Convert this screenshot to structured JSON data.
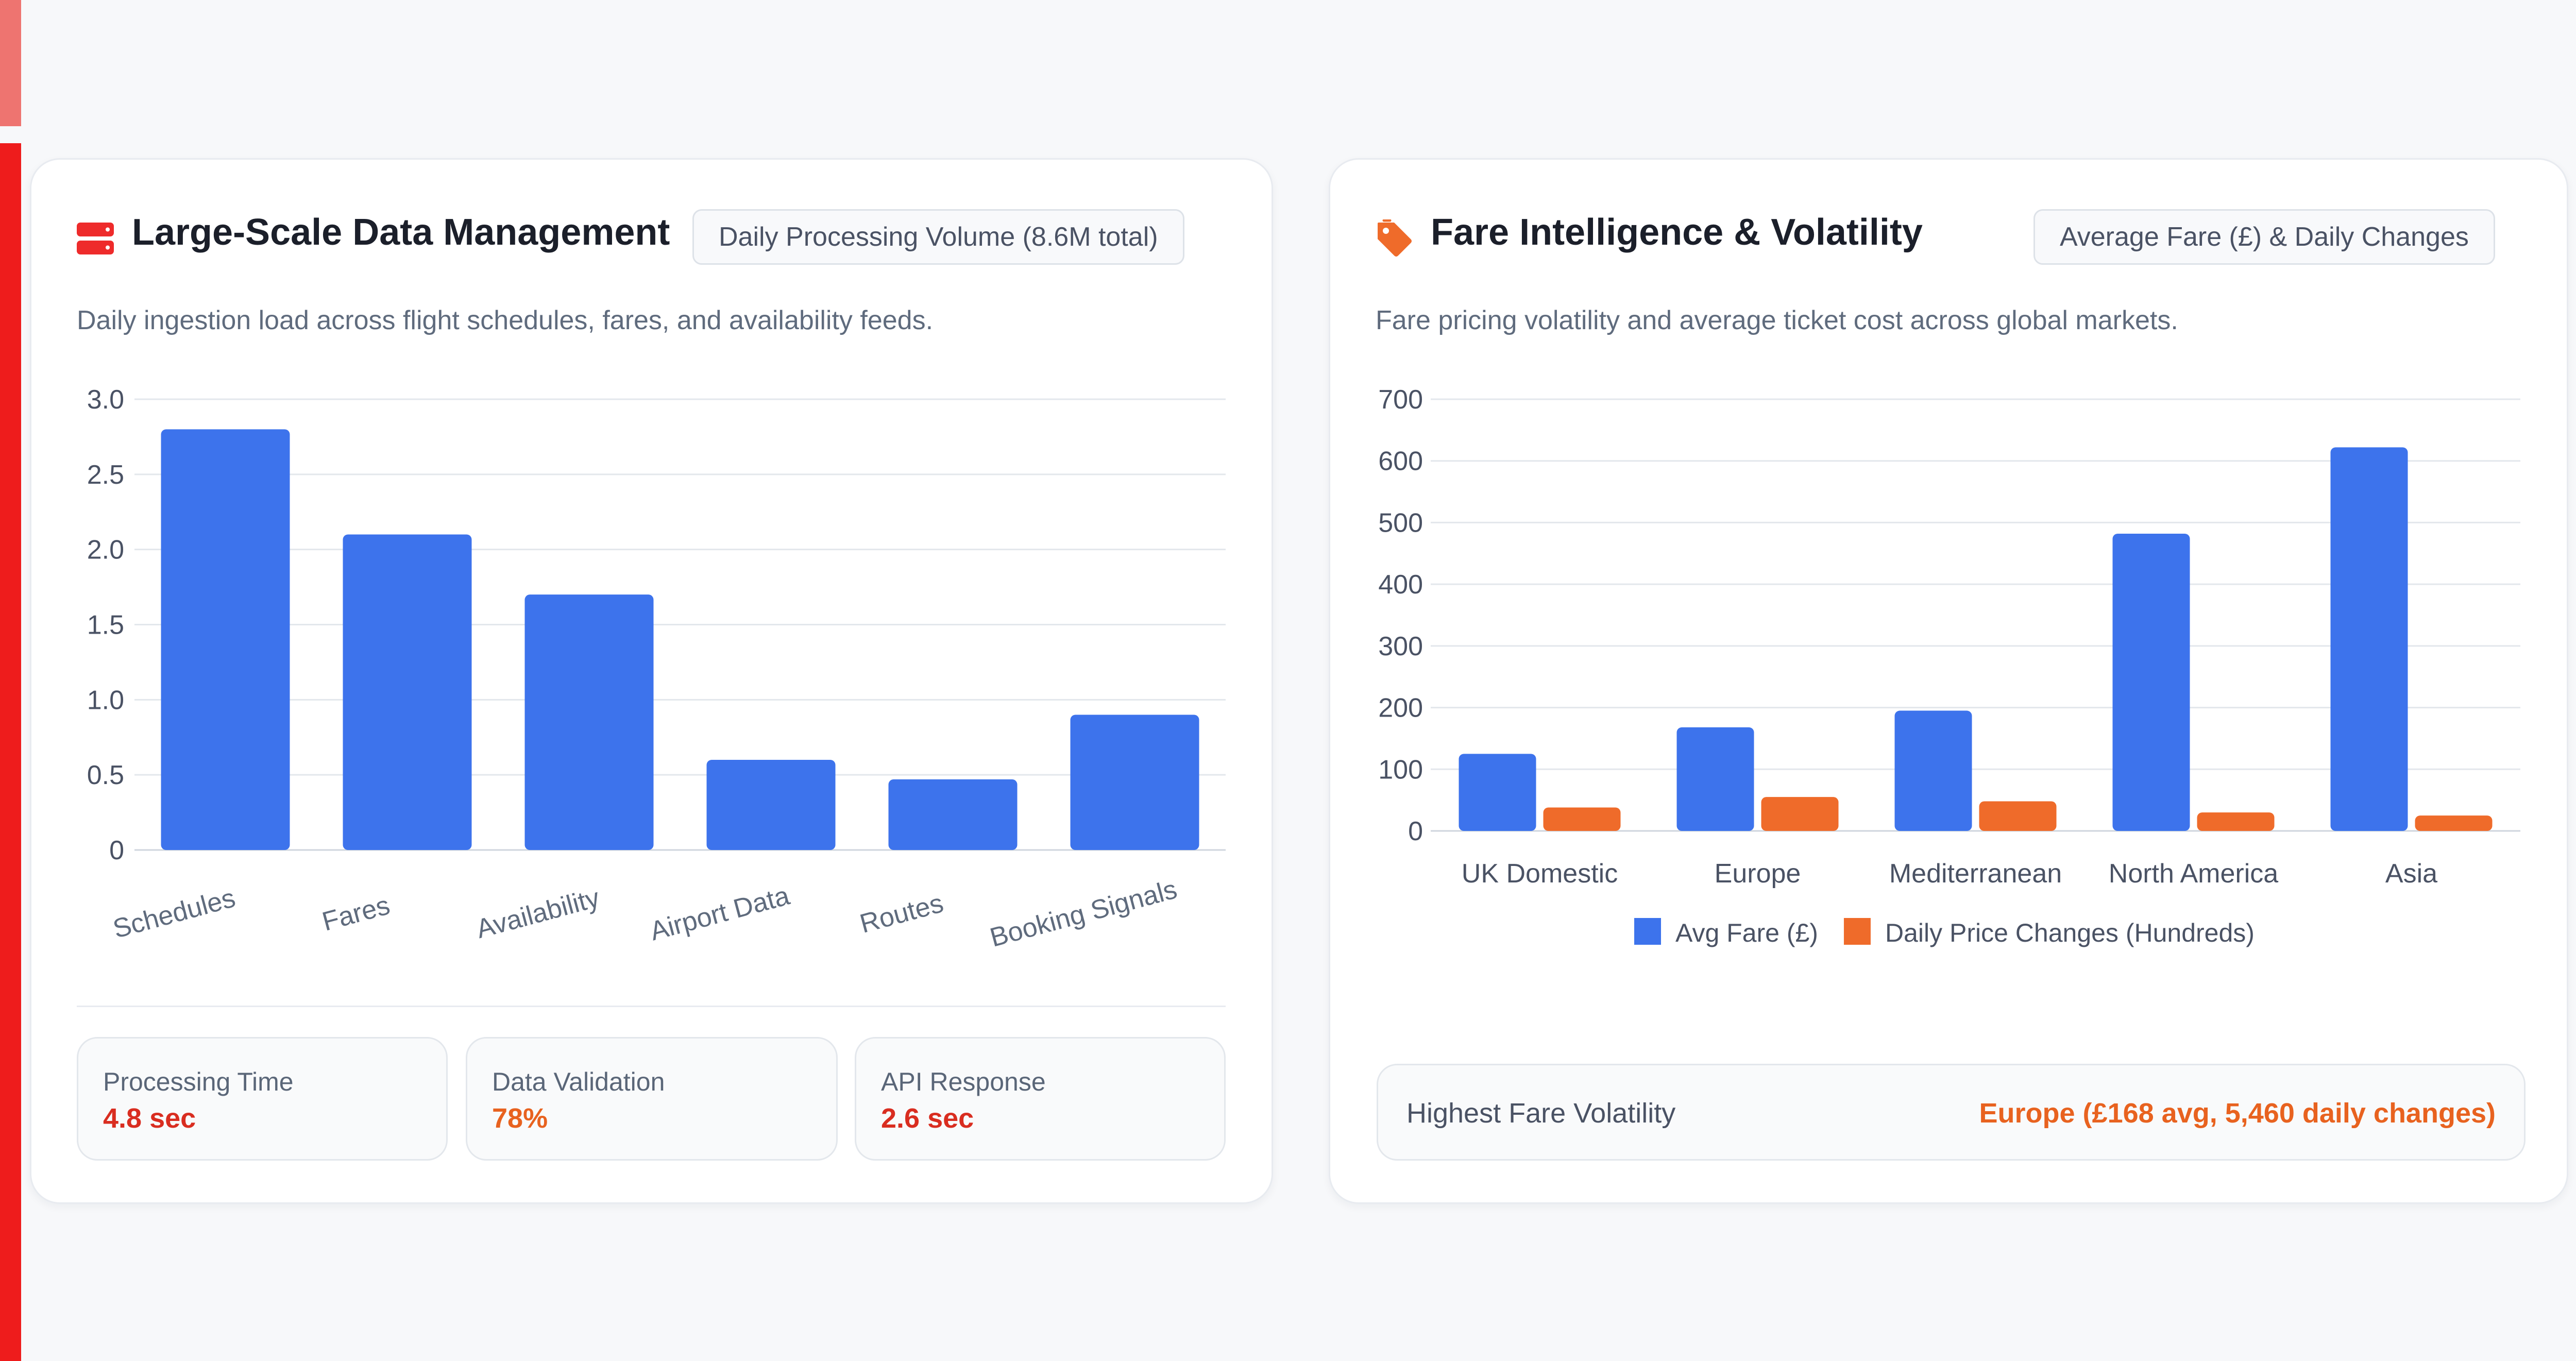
{
  "colors": {
    "bar_blue": "#3d73ec",
    "bar_orange": "#ef6b2a",
    "value_red": "#d92d20",
    "value_orange": "#e8621f"
  },
  "left_card": {
    "title": "Large-Scale Data Management",
    "icon": "server-icon",
    "badge": "Daily Processing Volume (8.6M total)",
    "subtitle": "Daily ingestion load across flight schedules, fares, and availability feeds.",
    "metrics": [
      {
        "label": "Processing Time",
        "value": "4.8 sec",
        "color": "#d92d20"
      },
      {
        "label": "Data Validation",
        "value": "78%",
        "color": "#e8621f"
      },
      {
        "label": "API Response",
        "value": "2.6 sec",
        "color": "#d92d20"
      }
    ]
  },
  "right_card": {
    "title": "Fare Intelligence & Volatility",
    "icon": "price-tag-icon",
    "badge": "Average Fare (£) & Daily Changes",
    "subtitle": "Fare pricing volatility and average ticket cost across global markets.",
    "highlight_label": "Highest Fare Volatility",
    "highlight_value": "Europe (£168 avg, 5,460 daily changes)"
  },
  "chart_data": [
    {
      "type": "bar",
      "categories": [
        "Schedules",
        "Fares",
        "Availability",
        "Airport Data",
        "Routes",
        "Booking Signals"
      ],
      "values": [
        2.8,
        2.1,
        1.7,
        0.6,
        0.47,
        0.9
      ],
      "ylim": [
        0,
        3.0
      ],
      "yticks": [
        0,
        0.5,
        1.0,
        1.5,
        2.0,
        2.5,
        3.0
      ],
      "ytick_labels": [
        "0",
        "0.5",
        "1.0",
        "1.5",
        "2.0",
        "2.5",
        "3.0"
      ],
      "grid": true,
      "legend": "none"
    },
    {
      "type": "bar",
      "categories": [
        "UK Domestic",
        "Europe",
        "Mediterranean",
        "North America",
        "Asia"
      ],
      "series": [
        {
          "name": "Avg Fare (£)",
          "values": [
            125,
            168,
            195,
            482,
            622
          ],
          "color": "#3d73ec"
        },
        {
          "name": "Daily Price Changes (Hundreds)",
          "values": [
            38,
            55,
            48,
            30,
            25
          ],
          "color": "#ef6b2a"
        }
      ],
      "ylim": [
        0,
        700
      ],
      "yticks": [
        0,
        100,
        200,
        300,
        400,
        500,
        600,
        700
      ],
      "grid": true,
      "legend": "bottom"
    }
  ]
}
